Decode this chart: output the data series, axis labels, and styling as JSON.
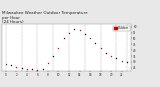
{
  "title": "Milwaukee Weather Outdoor Temperature\nper Hour\n(24 Hours)",
  "title_fontsize": 3.0,
  "background_color": "#e8e8e8",
  "plot_bg_color": "#ffffff",
  "dot_color_red": "#cc0000",
  "dot_color_black": "#000000",
  "grid_color": "#888888",
  "hours": [
    0,
    1,
    2,
    3,
    4,
    5,
    6,
    7,
    8,
    9,
    10,
    11,
    12,
    13,
    14,
    15,
    16,
    17,
    18,
    19,
    20,
    21,
    22,
    23
  ],
  "temps": [
    28,
    27,
    26,
    25,
    24,
    24,
    23,
    24,
    29,
    35,
    42,
    50,
    55,
    58,
    57,
    54,
    50,
    46,
    42,
    38,
    35,
    33,
    31,
    30
  ],
  "ylim_min": 22,
  "ylim_max": 62,
  "yticks": [
    25,
    30,
    35,
    40,
    45,
    50,
    55,
    60
  ],
  "xlim_min": -0.8,
  "xlim_max": 23.8,
  "legend_label": "Outdoor",
  "legend_color": "#cc0000",
  "dot_size": 1.0
}
